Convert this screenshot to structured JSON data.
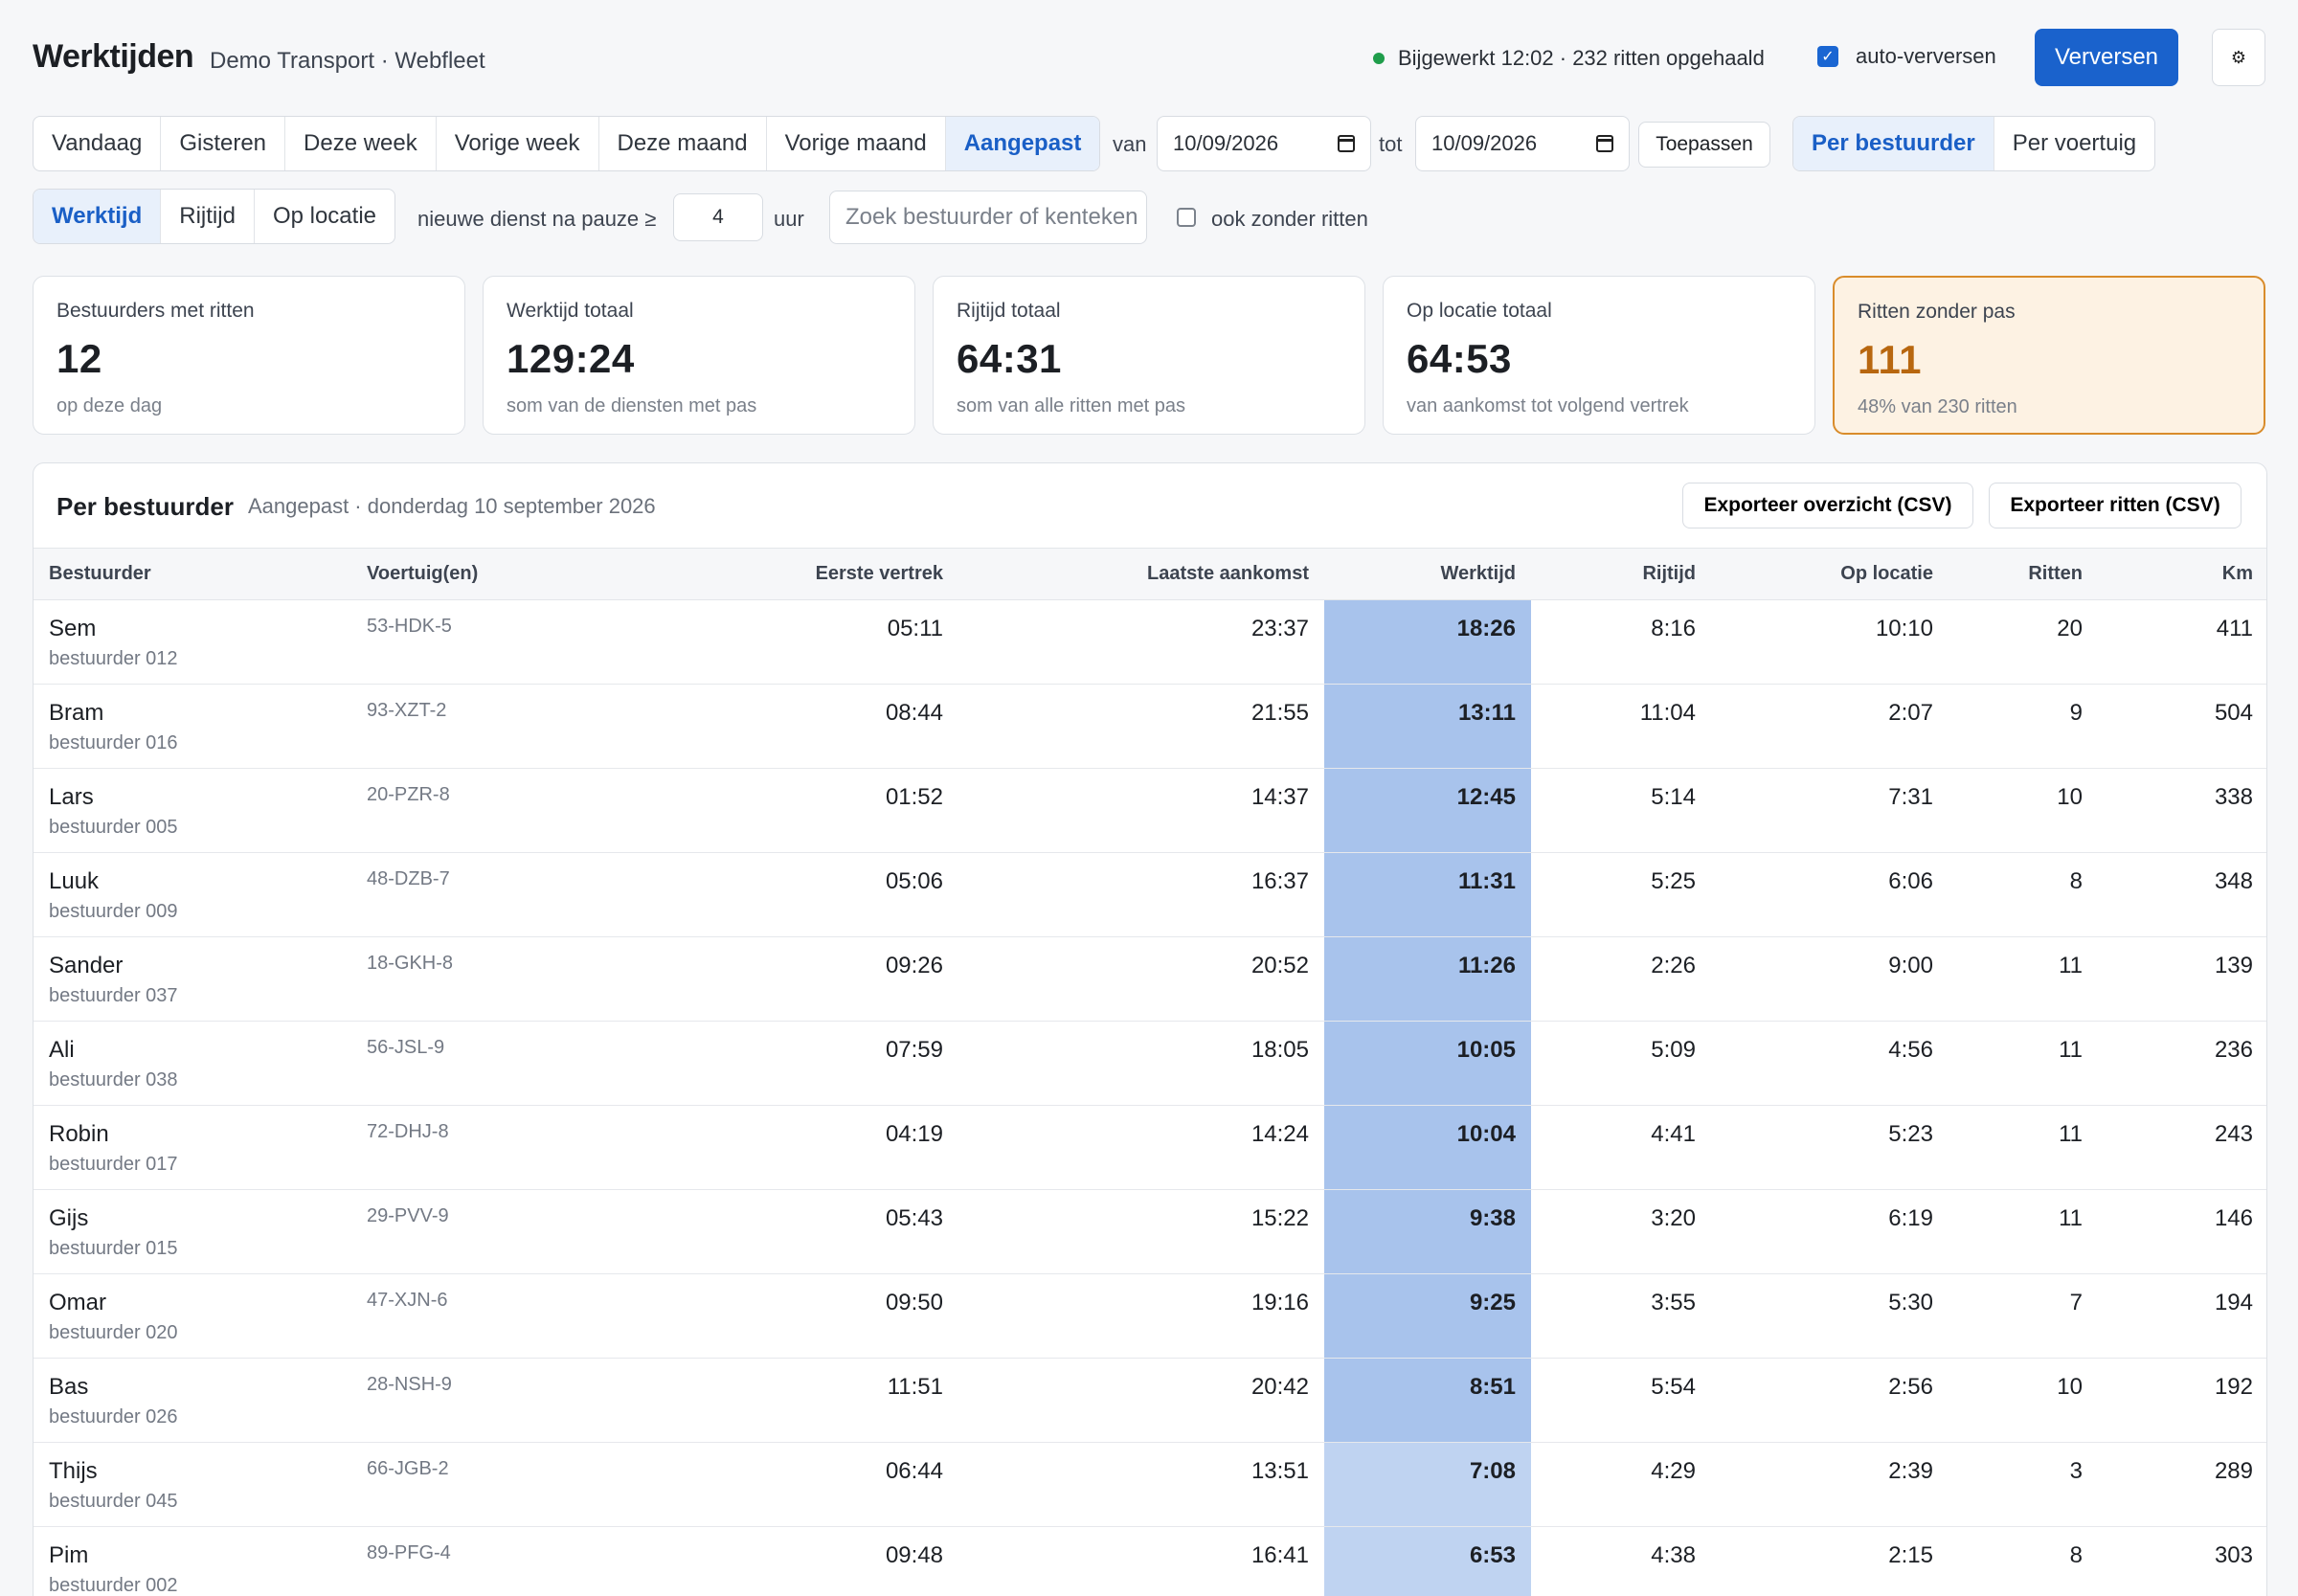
{
  "header": {
    "title": "Werktijden",
    "subtitle": "Demo Transport · Webfleet",
    "status": "Bijgewerkt 12:02 · 232 ritten opgehaald",
    "auto_refresh_label": "auto-verversen",
    "auto_refresh_checked": true,
    "refresh_label": "Verversen",
    "settings_icon": "gear-icon"
  },
  "period_tabs": [
    {
      "label": "Vandaag"
    },
    {
      "label": "Gisteren"
    },
    {
      "label": "Deze week"
    },
    {
      "label": "Vorige week"
    },
    {
      "label": "Deze maand"
    },
    {
      "label": "Vorige maand"
    },
    {
      "label": "Aangepast",
      "active": true
    }
  ],
  "date_range": {
    "from_label": "van",
    "from_value": "10/09/2026",
    "to_label": "tot",
    "to_value": "10/09/2026",
    "apply_label": "Toepassen"
  },
  "group_tabs": [
    {
      "label": "Per bestuurder",
      "active": true
    },
    {
      "label": "Per voertuig"
    }
  ],
  "metric_tabs": [
    {
      "label": "Werktijd",
      "active": true
    },
    {
      "label": "Rijtijd"
    },
    {
      "label": "Op locatie"
    }
  ],
  "pause": {
    "label": "nieuwe dienst na pauze ≥",
    "value": "4",
    "unit": "uur"
  },
  "search": {
    "placeholder": "Zoek bestuurder of kenteken"
  },
  "no_trips": {
    "label": "ook zonder ritten",
    "checked": false
  },
  "kpis": [
    {
      "label": "Bestuurders met ritten",
      "value": "12",
      "sub": "op deze dag"
    },
    {
      "label": "Werktijd totaal",
      "value": "129:24",
      "sub": "som van de diensten met pas"
    },
    {
      "label": "Rijtijd totaal",
      "value": "64:31",
      "sub": "som van alle ritten met pas"
    },
    {
      "label": "Op locatie totaal",
      "value": "64:53",
      "sub": "van aankomst tot volgend vertrek"
    },
    {
      "label": "Ritten zonder pas",
      "value": "111",
      "sub": "48% van 230 ritten",
      "highlight_color": "#d98c2b"
    }
  ],
  "table": {
    "title": "Per bestuurder",
    "subtitle": "Aangepast · donderdag 10 september 2026",
    "export_overview_label": "Exporteer overzicht (CSV)",
    "export_trips_label": "Exporteer ritten (CSV)",
    "columns": [
      "Bestuurder",
      "Voertuig(en)",
      "Eerste vertrek",
      "Laatste aankomst",
      "Werktijd",
      "Rijtijd",
      "Op locatie",
      "Ritten",
      "Km"
    ],
    "rows": [
      {
        "name": "Sem",
        "id": "bestuurder 012",
        "vehicle": "53-HDK-5",
        "first": "05:11",
        "last": "23:37",
        "work": "18:26",
        "drive": "8:16",
        "onsite": "10:10",
        "trips": "20",
        "km": "411"
      },
      {
        "name": "Bram",
        "id": "bestuurder 016",
        "vehicle": "93-XZT-2",
        "first": "08:44",
        "last": "21:55",
        "work": "13:11",
        "drive": "11:04",
        "onsite": "2:07",
        "trips": "9",
        "km": "504"
      },
      {
        "name": "Lars",
        "id": "bestuurder 005",
        "vehicle": "20-PZR-8",
        "first": "01:52",
        "last": "14:37",
        "work": "12:45",
        "drive": "5:14",
        "onsite": "7:31",
        "trips": "10",
        "km": "338"
      },
      {
        "name": "Luuk",
        "id": "bestuurder 009",
        "vehicle": "48-DZB-7",
        "first": "05:06",
        "last": "16:37",
        "work": "11:31",
        "drive": "5:25",
        "onsite": "6:06",
        "trips": "8",
        "km": "348"
      },
      {
        "name": "Sander",
        "id": "bestuurder 037",
        "vehicle": "18-GKH-8",
        "first": "09:26",
        "last": "20:52",
        "work": "11:26",
        "drive": "2:26",
        "onsite": "9:00",
        "trips": "11",
        "km": "139"
      },
      {
        "name": "Ali",
        "id": "bestuurder 038",
        "vehicle": "56-JSL-9",
        "first": "07:59",
        "last": "18:05",
        "work": "10:05",
        "drive": "5:09",
        "onsite": "4:56",
        "trips": "11",
        "km": "236"
      },
      {
        "name": "Robin",
        "id": "bestuurder 017",
        "vehicle": "72-DHJ-8",
        "first": "04:19",
        "last": "14:24",
        "work": "10:04",
        "drive": "4:41",
        "onsite": "5:23",
        "trips": "11",
        "km": "243"
      },
      {
        "name": "Gijs",
        "id": "bestuurder 015",
        "vehicle": "29-PVV-9",
        "first": "05:43",
        "last": "15:22",
        "work": "9:38",
        "drive": "3:20",
        "onsite": "6:19",
        "trips": "11",
        "km": "146"
      },
      {
        "name": "Omar",
        "id": "bestuurder 020",
        "vehicle": "47-XJN-6",
        "first": "09:50",
        "last": "19:16",
        "work": "9:25",
        "drive": "3:55",
        "onsite": "5:30",
        "trips": "7",
        "km": "194"
      },
      {
        "name": "Bas",
        "id": "bestuurder 026",
        "vehicle": "28-NSH-9",
        "first": "11:51",
        "last": "20:42",
        "work": "8:51",
        "drive": "5:54",
        "onsite": "2:56",
        "trips": "10",
        "km": "192"
      },
      {
        "name": "Thijs",
        "id": "bestuurder 045",
        "vehicle": "66-JGB-2",
        "first": "06:44",
        "last": "13:51",
        "work": "7:08",
        "drive": "4:29",
        "onsite": "2:39",
        "trips": "3",
        "km": "289"
      },
      {
        "name": "Pim",
        "id": "bestuurder 002",
        "vehicle": "89-PFG-4",
        "first": "09:48",
        "last": "16:41",
        "work": "6:53",
        "drive": "4:38",
        "onsite": "2:15",
        "trips": "8",
        "km": "303"
      }
    ]
  },
  "colors": {
    "accent": "#1a62cc",
    "work_highlight": "#a8c3ec",
    "status_ok": "#1f9d4b",
    "warning": "#b8670f"
  }
}
